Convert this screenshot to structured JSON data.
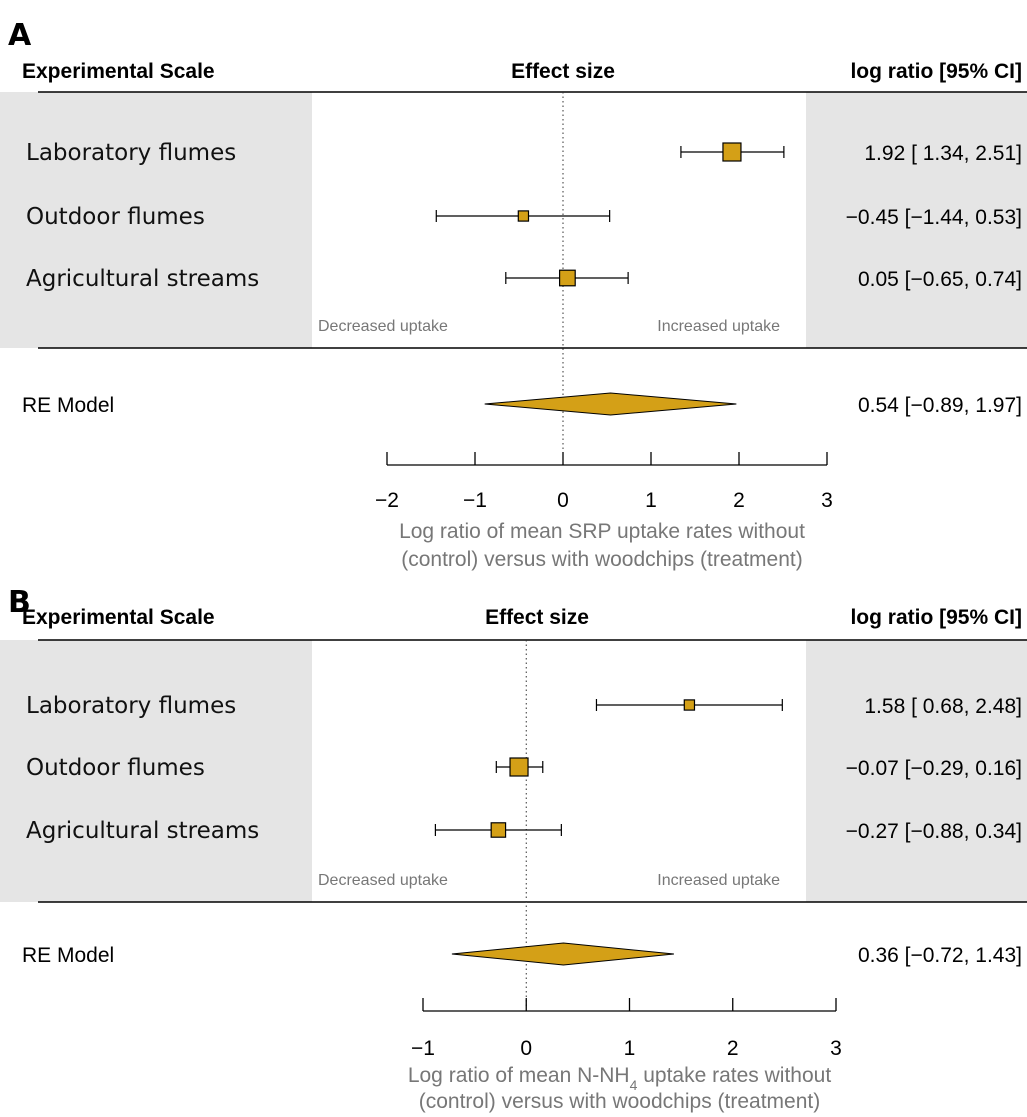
{
  "colors": {
    "marker": "#d4a017",
    "marker_stroke": "#000000",
    "shade": "#e5e5e5",
    "muted_text": "#777777"
  },
  "chart_data": [
    {
      "type": "forest",
      "panel_label": "A",
      "headers": {
        "left": "Experimental Scale",
        "center": "Effect size",
        "right": "log ratio [95% CI]"
      },
      "studies": [
        {
          "label": "Laboratory flumes",
          "estimate": 1.92,
          "lower": 1.34,
          "upper": 2.51,
          "ci_text": "1.92 [ 1.34, 2.51]",
          "weight": 1.0
        },
        {
          "label": "Outdoor flumes",
          "estimate": -0.45,
          "lower": -1.44,
          "upper": 0.53,
          "ci_text": "−0.45 [−1.44, 0.53]",
          "weight": 0.35
        },
        {
          "label": "Agricultural streams",
          "estimate": 0.05,
          "lower": -0.65,
          "upper": 0.74,
          "ci_text": "0.05 [−0.65, 0.74]",
          "weight": 0.8
        }
      ],
      "summary": {
        "label": "RE Model",
        "estimate": 0.54,
        "lower": -0.89,
        "upper": 1.97,
        "ci_text": "0.54 [−0.89, 1.97]"
      },
      "annotations": {
        "left": "Decreased uptake",
        "right": "Increased uptake"
      },
      "xlim": [
        -2,
        3
      ],
      "xticks": [
        -2,
        -1,
        0,
        1,
        2,
        3
      ],
      "xtick_labels": [
        "−2",
        "−1",
        "0",
        "1",
        "2",
        "3"
      ],
      "xlabel_lines": [
        "Log ratio of mean SRP uptake rates without",
        "(control) versus with woodchips (treatment)"
      ]
    },
    {
      "type": "forest",
      "panel_label": "B",
      "headers": {
        "left": "Experimental Scale",
        "center": "Effect size",
        "right": "log ratio [95% CI]"
      },
      "studies": [
        {
          "label": "Laboratory flumes",
          "estimate": 1.58,
          "lower": 0.68,
          "upper": 2.48,
          "ci_text": "1.58 [ 0.68, 2.48]",
          "weight": 0.35
        },
        {
          "label": "Outdoor flumes",
          "estimate": -0.07,
          "lower": -0.29,
          "upper": 0.16,
          "ci_text": "−0.07 [−0.29, 0.16]",
          "weight": 1.0
        },
        {
          "label": "Agricultural streams",
          "estimate": -0.27,
          "lower": -0.88,
          "upper": 0.34,
          "ci_text": "−0.27 [−0.88, 0.34]",
          "weight": 0.7
        }
      ],
      "summary": {
        "label": "RE Model",
        "estimate": 0.36,
        "lower": -0.72,
        "upper": 1.43,
        "ci_text": "0.36 [−0.72, 1.43]"
      },
      "annotations": {
        "left": "Decreased uptake",
        "right": "Increased uptake"
      },
      "xlim": [
        -1,
        3
      ],
      "xticks": [
        -1,
        0,
        1,
        2,
        3
      ],
      "xtick_labels": [
        "−1",
        "0",
        "1",
        "2",
        "3"
      ],
      "xlabel_lines": [
        "Log ratio of mean N-NH",
        "4",
        " uptake rates without",
        "(control) versus with woodchips (treatment)"
      ]
    }
  ]
}
